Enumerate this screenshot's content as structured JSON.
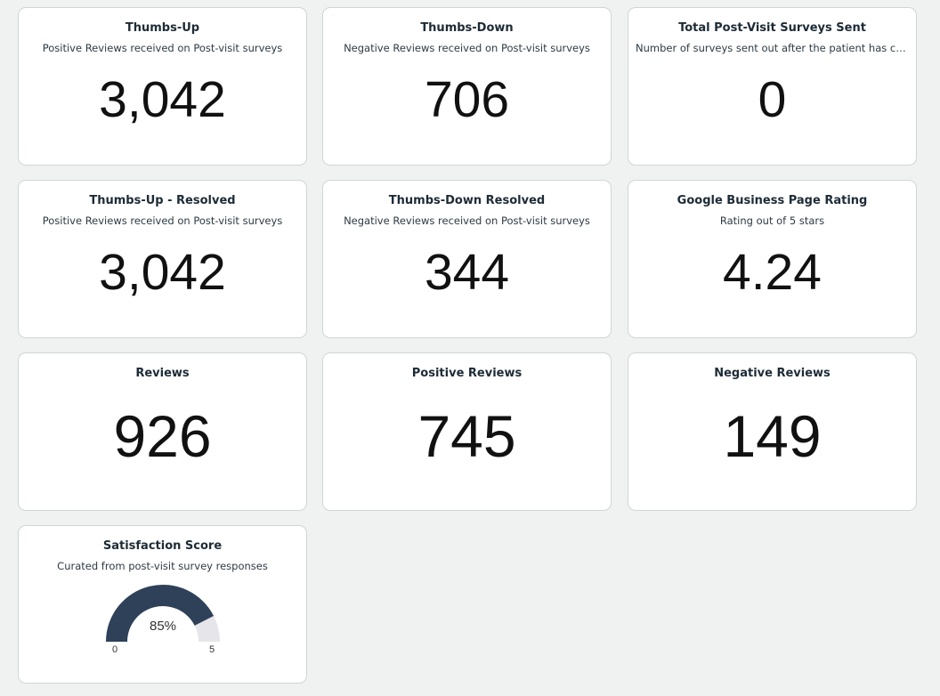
{
  "cards": [
    {
      "title": "Thumbs-Up",
      "subtitle": "Positive Reviews received on Post-visit surveys",
      "value": "3,042"
    },
    {
      "title": "Thumbs-Down",
      "subtitle": "Negative Reviews received on Post-visit surveys",
      "value": "706"
    },
    {
      "title": "Total Post-Visit Surveys Sent",
      "subtitle": "Number of surveys sent out after the patient has completed their visit",
      "value": "0"
    },
    {
      "title": "Thumbs-Up - Resolved",
      "subtitle": "Positive Reviews received on Post-visit surveys",
      "value": "3,042"
    },
    {
      "title": "Thumbs-Down Resolved",
      "subtitle": "Negative Reviews received on Post-visit surveys",
      "value": "344"
    },
    {
      "title": "Google Business Page Rating",
      "subtitle": "Rating out of 5 stars",
      "value": "4.24"
    },
    {
      "title": "Reviews",
      "value": "926"
    },
    {
      "title": "Positive Reviews",
      "value": "745"
    },
    {
      "title": "Negative Reviews",
      "value": "149"
    }
  ],
  "satisfaction": {
    "title": "Satisfaction Score",
    "subtitle": "Curated from post-visit survey responses",
    "percent_label": "85%",
    "percent": 85,
    "min_label": "0",
    "max_label": "5",
    "fill_color": "#2f4159",
    "track_color": "#e6e6ea"
  }
}
